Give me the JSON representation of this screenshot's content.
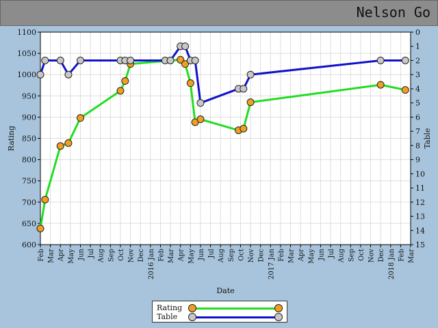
{
  "title": "Nelson Go",
  "chart_data": {
    "type": "line",
    "xlabel": "Date",
    "ylabel": "Rating",
    "y2label": "Table",
    "ylim": [
      600,
      1100
    ],
    "y_ticks": [
      600,
      650,
      700,
      750,
      800,
      850,
      900,
      950,
      1000,
      1050,
      1100
    ],
    "y2lim": [
      0,
      15
    ],
    "y2_inverted": true,
    "y2_ticks": [
      0,
      1,
      2,
      3,
      4,
      5,
      6,
      7,
      8,
      9,
      10,
      11,
      12,
      13,
      14,
      15
    ],
    "x_ticks": [
      "Feb",
      "Mar",
      "Apr",
      "May",
      "Jun",
      "Jul",
      "Aug",
      "Sep",
      "Oct",
      "Nov",
      "Dec",
      "2016 Jan",
      "Feb",
      "Mar",
      "Apr",
      "May",
      "Jun",
      "Jul",
      "Aug",
      "Sep",
      "Oct",
      "Nov",
      "Dec",
      "2017 Jan",
      "Feb",
      "Mar",
      "Apr",
      "May",
      "Jun",
      "Jul",
      "Aug",
      "Sep",
      "Oct",
      "Nov",
      "Dec",
      "2018 Jan",
      "Feb",
      "Mar"
    ],
    "grid": true,
    "legend_position": "bottom-center",
    "series": [
      {
        "name": "Rating",
        "axis": "left",
        "line_color": "#22dd22",
        "marker_color": "#f0a020",
        "x": [
          "2015-02-01",
          "2015-02-15",
          "2015-04-01",
          "2015-04-25",
          "2015-06-01",
          "2015-10-01",
          "2015-10-15",
          "2015-11-01",
          "2016-04-01",
          "2016-04-15",
          "2016-05-01",
          "2016-05-15",
          "2016-06-01",
          "2016-09-25",
          "2016-10-10",
          "2016-11-01",
          "2017-12-01",
          "2018-02-15"
        ],
        "values": [
          638,
          706,
          832,
          839,
          898,
          962,
          985,
          1025,
          1035,
          1025,
          980,
          888,
          895,
          869,
          873,
          935,
          976,
          964
        ]
      },
      {
        "name": "Table",
        "axis": "right",
        "line_color": "#1010cc",
        "marker_color": "#c8c8c8",
        "x": [
          "2015-02-01",
          "2015-02-15",
          "2015-04-01",
          "2015-04-25",
          "2015-06-01",
          "2015-10-01",
          "2015-10-15",
          "2015-11-01",
          "2016-02-15",
          "2016-03-01",
          "2016-04-01",
          "2016-04-15",
          "2016-05-01",
          "2016-05-15",
          "2016-06-01",
          "2016-09-25",
          "2016-10-10",
          "2016-11-01",
          "2017-12-01",
          "2018-02-15"
        ],
        "values": [
          3,
          2,
          2,
          3,
          2,
          2,
          2,
          2,
          2,
          2,
          1,
          1,
          2,
          2,
          5,
          4,
          4,
          3,
          2,
          2
        ]
      }
    ]
  }
}
